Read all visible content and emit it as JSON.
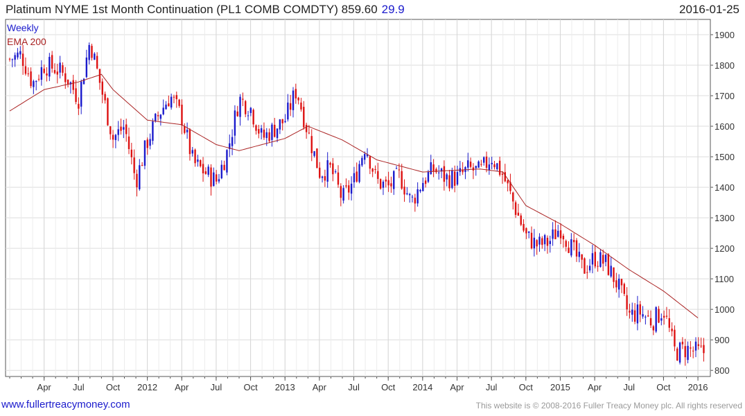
{
  "header": {
    "title": "Platinum NYME 1st Month Continuation (PL1 COMB COMDTY) 859.60",
    "change": "29.9",
    "date": "2016-01-25"
  },
  "legend": {
    "period": "Weekly",
    "ema": "EMA 200"
  },
  "footer": {
    "link": "www.fullertreacymoney.com",
    "copyright": "This website is © 2008-2016 Fuller Treacy Money plc. All rights reserved"
  },
  "colors": {
    "up": "#1a1acc",
    "down": "#dd1111",
    "ema": "#aa2222",
    "grid": "#dcdcdc",
    "axis": "#555555"
  },
  "chart_data": {
    "type": "candlestick",
    "frequency": "weekly",
    "x_range": [
      "2011-01",
      "2016-01"
    ],
    "ylim": [
      780,
      1950
    ],
    "yticks": [
      800,
      900,
      1000,
      1100,
      1200,
      1300,
      1400,
      1500,
      1600,
      1700,
      1800,
      1900
    ],
    "xticks": [
      "Apr",
      "Jul",
      "Oct",
      "2012",
      "Apr",
      "Jul",
      "Oct",
      "2013",
      "Apr",
      "Jul",
      "Oct",
      "2014",
      "Apr",
      "Jul",
      "Oct",
      "2015",
      "Apr",
      "Jul",
      "Oct",
      "2016"
    ],
    "grid": true,
    "last_close": 859.6,
    "last_change": 29.9,
    "close_path": [
      [
        "2011-01",
        1820
      ],
      [
        "2011-02",
        1835
      ],
      [
        "2011-03",
        1740
      ],
      [
        "2011-04",
        1800
      ],
      [
        "2011-05",
        1790
      ],
      [
        "2011-06",
        1760
      ],
      [
        "2011-07",
        1690
      ],
      [
        "2011-08",
        1880
      ],
      [
        "2011-09",
        1720
      ],
      [
        "2011-10",
        1560
      ],
      [
        "2011-11",
        1600
      ],
      [
        "2011-12",
        1420
      ],
      [
        "2012-01",
        1550
      ],
      [
        "2012-02",
        1640
      ],
      [
        "2012-03",
        1700
      ],
      [
        "2012-04",
        1630
      ],
      [
        "2012-05",
        1480
      ],
      [
        "2012-06",
        1450
      ],
      [
        "2012-07",
        1420
      ],
      [
        "2012-08",
        1520
      ],
      [
        "2012-09",
        1690
      ],
      [
        "2012-10",
        1660
      ],
      [
        "2012-11",
        1560
      ],
      [
        "2012-12",
        1590
      ],
      [
        "2013-01",
        1620
      ],
      [
        "2013-02",
        1720
      ],
      [
        "2013-03",
        1580
      ],
      [
        "2013-04",
        1450
      ],
      [
        "2013-05",
        1460
      ],
      [
        "2013-06",
        1360
      ],
      [
        "2013-07",
        1420
      ],
      [
        "2013-08",
        1540
      ],
      [
        "2013-09",
        1420
      ],
      [
        "2013-10",
        1400
      ],
      [
        "2013-11",
        1440
      ],
      [
        "2013-12",
        1350
      ],
      [
        "2014-01",
        1420
      ],
      [
        "2014-02",
        1460
      ],
      [
        "2014-03",
        1430
      ],
      [
        "2014-04",
        1430
      ],
      [
        "2014-05",
        1460
      ],
      [
        "2014-06",
        1450
      ],
      [
        "2014-07",
        1500
      ],
      [
        "2014-08",
        1440
      ],
      [
        "2014-09",
        1340
      ],
      [
        "2014-10",
        1240
      ],
      [
        "2014-11",
        1210
      ],
      [
        "2014-12",
        1220
      ],
      [
        "2015-01",
        1270
      ],
      [
        "2015-02",
        1200
      ],
      [
        "2015-03",
        1130
      ],
      [
        "2015-04",
        1170
      ],
      [
        "2015-05",
        1150
      ],
      [
        "2015-06",
        1080
      ],
      [
        "2015-07",
        980
      ],
      [
        "2015-08",
        990
      ],
      [
        "2015-09",
        960
      ],
      [
        "2015-10",
        1000
      ],
      [
        "2015-11",
        860
      ],
      [
        "2015-12",
        870
      ],
      [
        "2016-01",
        859.6
      ]
    ],
    "ema200_path": [
      [
        "2011-01",
        1650
      ],
      [
        "2011-04",
        1720
      ],
      [
        "2011-07",
        1745
      ],
      [
        "2011-09",
        1770
      ],
      [
        "2011-10",
        1720
      ],
      [
        "2012-01",
        1620
      ],
      [
        "2012-04",
        1605
      ],
      [
        "2012-07",
        1540
      ],
      [
        "2012-09",
        1520
      ],
      [
        "2013-01",
        1560
      ],
      [
        "2013-03",
        1600
      ],
      [
        "2013-06",
        1555
      ],
      [
        "2013-09",
        1490
      ],
      [
        "2014-01",
        1450
      ],
      [
        "2014-06",
        1460
      ],
      [
        "2014-08",
        1450
      ],
      [
        "2014-10",
        1340
      ],
      [
        "2015-01",
        1280
      ],
      [
        "2015-04",
        1210
      ],
      [
        "2015-07",
        1130
      ],
      [
        "2015-10",
        1060
      ],
      [
        "2016-01",
        972
      ]
    ]
  }
}
